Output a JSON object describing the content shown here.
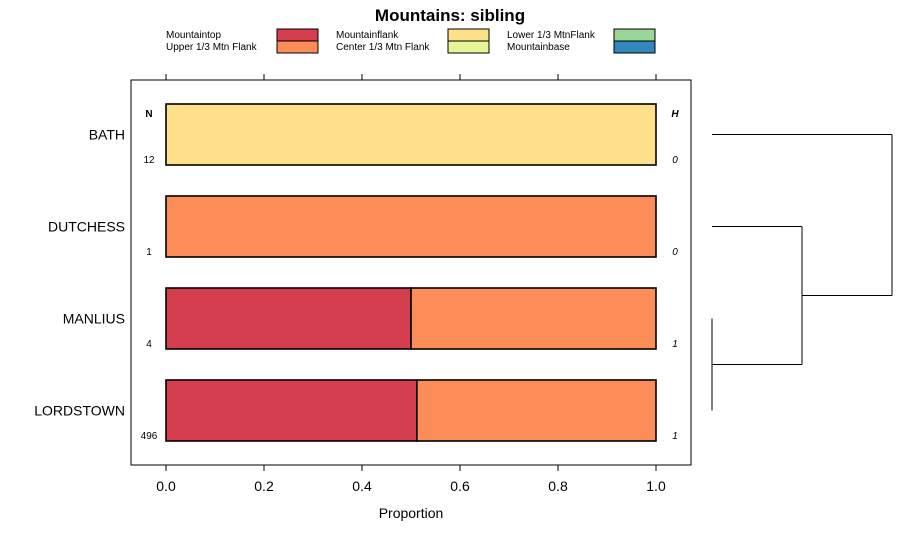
{
  "chart_data": {
    "type": "stacked-bar-horizontal",
    "title": "Mountains: sibling",
    "xlabel": "Proportion",
    "xlim": [
      0,
      1
    ],
    "xticks": [
      "0.0",
      "0.2",
      "0.4",
      "0.6",
      "0.8",
      "1.0"
    ],
    "xtick_values": [
      0,
      0.2,
      0.4,
      0.6,
      0.8,
      1.0
    ],
    "n_header": "N",
    "h_header": "H",
    "legend": [
      {
        "label": "Mountaintop",
        "color": "#d53e4f"
      },
      {
        "label": "Upper 1/3 Mtn Flank",
        "color": "#fc8d59"
      },
      {
        "label": "Mountainflank",
        "color": "#fee08b"
      },
      {
        "label": "Center 1/3 Mtn Flank",
        "color": "#e6f598"
      },
      {
        "label": "Lower 1/3 MtnFlank",
        "color": "#99d594"
      },
      {
        "label": "Mountainbase",
        "color": "#3288bd"
      }
    ],
    "rows": [
      {
        "name": "BATH",
        "n": "12",
        "h": "0",
        "segments": [
          {
            "category": "Mountainflank",
            "value": 1.0
          }
        ]
      },
      {
        "name": "DUTCHESS",
        "n": "1",
        "h": "0",
        "segments": [
          {
            "category": "Upper 1/3 Mtn Flank",
            "value": 1.0
          }
        ]
      },
      {
        "name": "MANLIUS",
        "n": "4",
        "h": "1",
        "segments": [
          {
            "category": "Mountaintop",
            "value": 0.5
          },
          {
            "category": "Upper 1/3 Mtn Flank",
            "value": 0.5
          }
        ]
      },
      {
        "name": "LORDSTOWN",
        "n": "496",
        "h": "1",
        "segments": [
          {
            "category": "Mountaintop",
            "value": 0.512
          },
          {
            "category": "Upper 1/3 Mtn Flank",
            "value": 0.488
          }
        ]
      }
    ],
    "dendrogram": {
      "merges": [
        {
          "left": "MANLIUS",
          "right": "LORDSTOWN",
          "height": 0.0
        },
        {
          "left": "DUTCHESS",
          "right": "MANLIUS+LORDSTOWN",
          "height": 0.5
        },
        {
          "left": "BATH",
          "right": "DUTCHESS+MANLIUS+LORDSTOWN",
          "height": 1.0
        }
      ]
    }
  }
}
